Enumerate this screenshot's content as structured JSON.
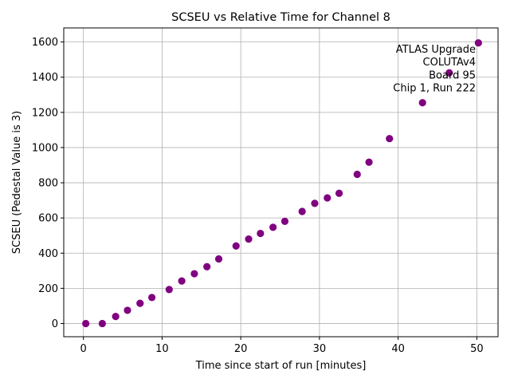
{
  "chart_data": {
    "type": "scatter",
    "title": "SCSEU vs Relative Time for Channel 8",
    "xlabel": "Time since start of run [minutes]",
    "ylabel": "SCSEU (Pedestal Value is 3)",
    "xlim": [
      -2.5,
      52.7
    ],
    "ylim": [
      -75,
      1680
    ],
    "xticks": [
      0,
      10,
      20,
      30,
      40,
      50
    ],
    "yticks": [
      0,
      200,
      400,
      600,
      800,
      1000,
      1200,
      1400,
      1600
    ],
    "grid": true,
    "marker_color": "#800080",
    "annotation": [
      "ATLAS Upgrade",
      "COLUTAv4",
      "Board 95",
      "Chip 1, Run 222"
    ],
    "annotation_placement": "top-right",
    "series": [
      {
        "points": [
          [
            0.3,
            0
          ],
          [
            2.4,
            0
          ],
          [
            4.1,
            40
          ],
          [
            5.6,
            75
          ],
          [
            7.2,
            115
          ],
          [
            8.7,
            148
          ],
          [
            10.9,
            193
          ],
          [
            12.5,
            242
          ],
          [
            14.1,
            283
          ],
          [
            15.7,
            323
          ],
          [
            17.2,
            367
          ],
          [
            19.4,
            441
          ],
          [
            21.0,
            480
          ],
          [
            22.5,
            512
          ],
          [
            24.1,
            547
          ],
          [
            25.6,
            581
          ],
          [
            27.8,
            637
          ],
          [
            29.4,
            683
          ],
          [
            31.0,
            714
          ],
          [
            32.5,
            740
          ],
          [
            34.8,
            848
          ],
          [
            36.3,
            917
          ],
          [
            38.9,
            1051
          ],
          [
            43.1,
            1255
          ],
          [
            46.5,
            1425
          ],
          [
            50.2,
            1595
          ]
        ]
      }
    ]
  }
}
